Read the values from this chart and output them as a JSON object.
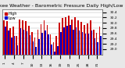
{
  "title": "Milwaukee Weather - Barometric Pressure Daily High/Low",
  "background_color": "#e8e8e8",
  "plot_bg_color": "#ffffff",
  "bar_width": 0.42,
  "highs": [
    30.1,
    30.05,
    29.8,
    29.85,
    29.5,
    30.12,
    30.08,
    30.05,
    29.88,
    29.65,
    29.45,
    29.75,
    29.95,
    30.08,
    29.9,
    29.55,
    29.25,
    29.5,
    30.0,
    30.18,
    30.22,
    30.28,
    30.12,
    30.22,
    30.08,
    30.02,
    29.92,
    29.98,
    30.08,
    29.75,
    29.62,
    29.85
  ],
  "lows": [
    29.85,
    29.72,
    29.45,
    29.5,
    29.15,
    29.8,
    29.75,
    29.68,
    29.52,
    29.28,
    29.08,
    29.38,
    29.62,
    29.72,
    29.55,
    29.18,
    28.92,
    29.12,
    29.65,
    29.82,
    29.88,
    29.92,
    29.75,
    29.82,
    29.7,
    29.65,
    29.58,
    29.6,
    29.72,
    29.4,
    29.25,
    29.5
  ],
  "high_color": "#cc0000",
  "low_color": "#0000cc",
  "ylim_min": 28.8,
  "ylim_max": 30.5,
  "yticks": [
    29.0,
    29.2,
    29.4,
    29.6,
    29.8,
    30.0,
    30.2,
    30.4
  ],
  "ytick_labels": [
    "29.0",
    "29.2",
    "29.4",
    "29.6",
    "29.8",
    "30.0",
    "30.2",
    "30.4"
  ],
  "n_bars": 32,
  "title_fontsize": 4.5,
  "tick_fontsize": 3.2,
  "legend_fontsize": 3.5
}
